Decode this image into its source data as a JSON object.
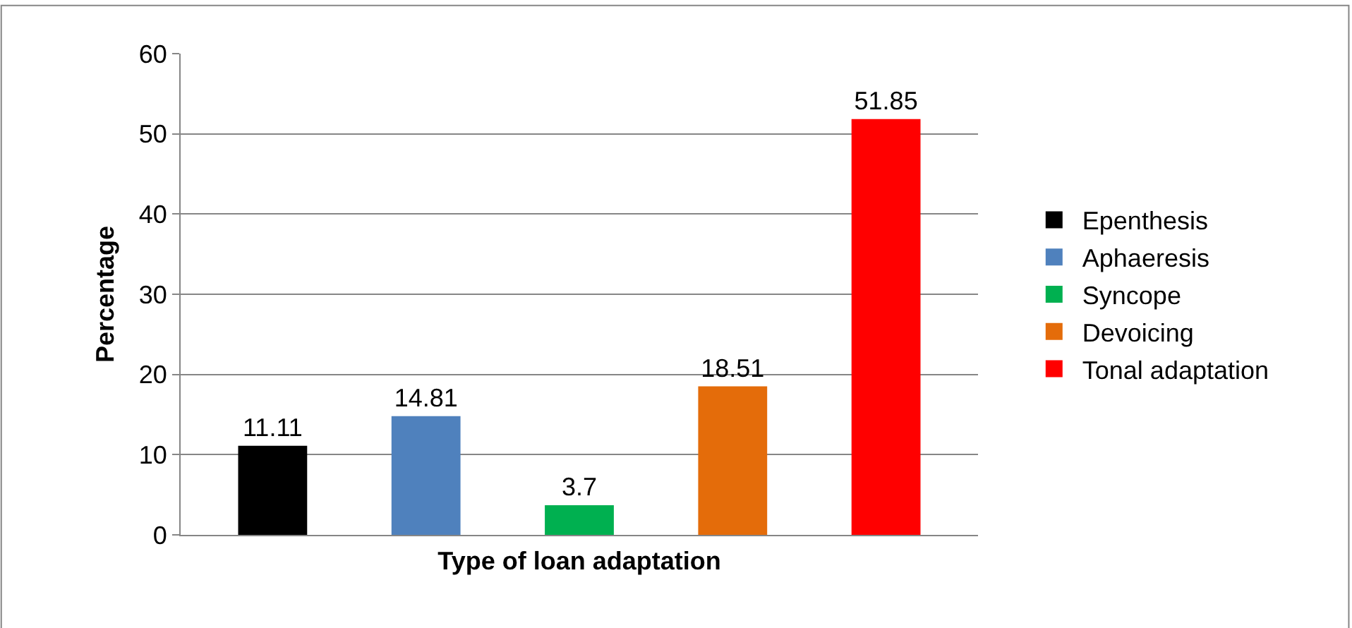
{
  "chart_data": {
    "type": "bar",
    "xlabel": "Type of loan adaptation",
    "ylabel": "Percentage",
    "categories": [
      null,
      null,
      null,
      null,
      null
    ],
    "series": [
      {
        "name": "Epenthesis",
        "color": "#000000",
        "values": [
          11.11,
          null,
          null,
          null,
          null
        ]
      },
      {
        "name": "Aphaeresis",
        "color": "#4f81bd",
        "values": [
          null,
          14.81,
          null,
          null,
          null
        ]
      },
      {
        "name": "Syncope",
        "color": "#00b050",
        "values": [
          null,
          null,
          3.7,
          null,
          null
        ]
      },
      {
        "name": "Devoicing",
        "color": "#e46c0a",
        "values": [
          null,
          null,
          null,
          18.51,
          null
        ]
      },
      {
        "name": "Tonal adaptation",
        "color": "#ff0000",
        "values": [
          null,
          null,
          null,
          null,
          51.85
        ]
      }
    ],
    "ylim": [
      0,
      60
    ],
    "yticks": [
      0,
      10,
      20,
      30,
      40,
      50,
      60
    ],
    "grid": "y",
    "legend": "right",
    "data_labels": true
  }
}
